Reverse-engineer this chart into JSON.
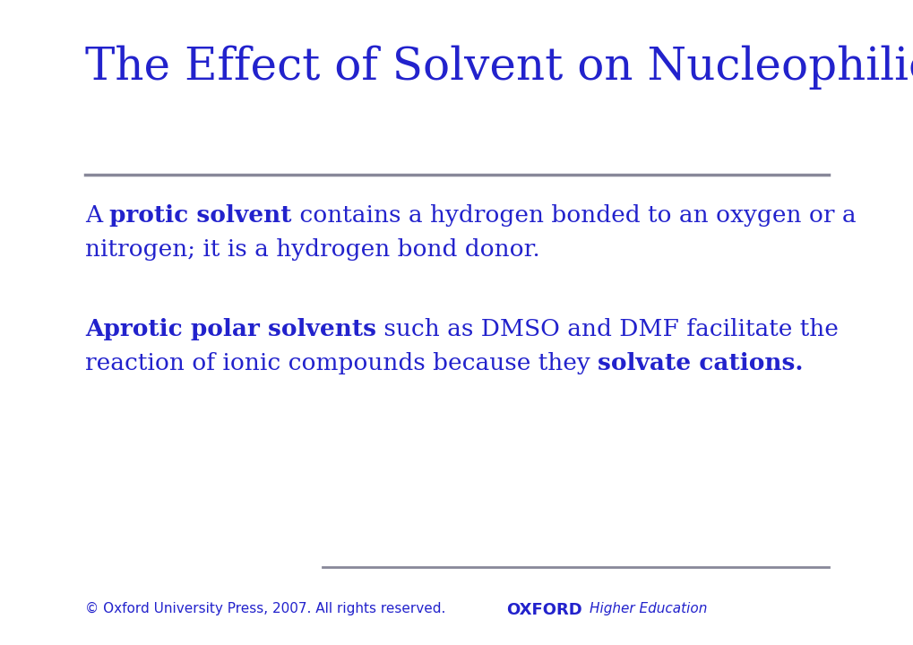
{
  "title": "The Effect of Solvent on Nucleophilicity",
  "title_color": "#2222CC",
  "title_fontsize": 36,
  "bg_color": "#FFFFFF",
  "line_color": "#888899",
  "blue_color": "#2222CC",
  "footer_left": "© Oxford University Press, 2007. All rights reserved.",
  "footer_oxford": "OXFORD",
  "footer_higher_ed": "Higher Education",
  "footer_fontsize": 11,
  "footer_oxford_fontsize": 13,
  "body_fontsize": 19
}
